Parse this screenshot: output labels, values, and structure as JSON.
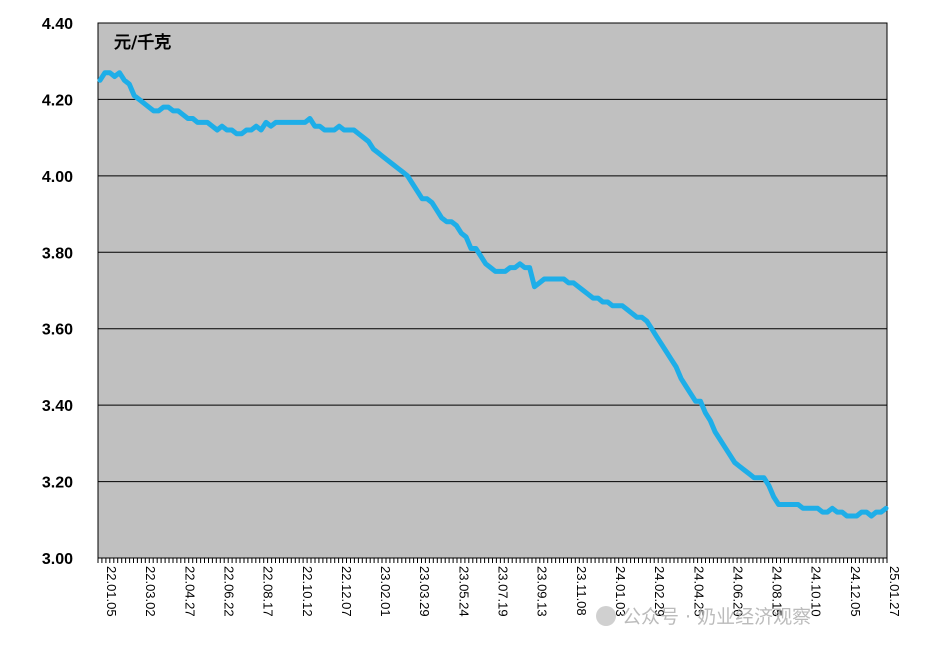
{
  "chart_data": {
    "type": "line",
    "unit_label": "元/千克",
    "ylim": [
      3.0,
      4.4
    ],
    "yticks": [
      "4.40",
      "4.20",
      "4.00",
      "3.80",
      "3.60",
      "3.40",
      "3.20",
      "3.00"
    ],
    "ytick_values": [
      4.4,
      4.2,
      4.0,
      3.8,
      3.6,
      3.4,
      3.2,
      3.0
    ],
    "grid": true,
    "legend": "none",
    "colors": {
      "plot_bg": "#c0c0c0",
      "line": "#1eaee8",
      "grid": "#000000"
    },
    "x_tick_labels": [
      "22.01.05",
      "22.03.02",
      "22.04.27",
      "22.06.22",
      "22.08.17",
      "22.10.12",
      "22.12.07",
      "23.02.01",
      "23.03.29",
      "23.05.24",
      "23.07.19",
      "23.09.13",
      "23.11.08",
      "24.01.03",
      "24.02.29",
      "24.04.25",
      "24.06.20",
      "24.08.15",
      "24.10.10",
      "24.12.05",
      "25.01.27"
    ],
    "series": [
      {
        "values": [
          4.25,
          4.27,
          4.27,
          4.26,
          4.27,
          4.25,
          4.24,
          4.21,
          4.2,
          4.19,
          4.18,
          4.17,
          4.17,
          4.18,
          4.18,
          4.17,
          4.17,
          4.16,
          4.15,
          4.15,
          4.14,
          4.14,
          4.14,
          4.13,
          4.12,
          4.13,
          4.12,
          4.12,
          4.11,
          4.11,
          4.12,
          4.12,
          4.13,
          4.12,
          4.14,
          4.13,
          4.14,
          4.14,
          4.14,
          4.14,
          4.14,
          4.14,
          4.14,
          4.15,
          4.13,
          4.13,
          4.12,
          4.12,
          4.12,
          4.13,
          4.12,
          4.12,
          4.12,
          4.11,
          4.1,
          4.09,
          4.07,
          4.06,
          4.05,
          4.04,
          4.03,
          4.02,
          4.01,
          4.0,
          3.98,
          3.96,
          3.94,
          3.94,
          3.93,
          3.91,
          3.89,
          3.88,
          3.88,
          3.87,
          3.85,
          3.84,
          3.81,
          3.81,
          3.79,
          3.77,
          3.76,
          3.75,
          3.75,
          3.75,
          3.76,
          3.76,
          3.77,
          3.76,
          3.76,
          3.71,
          3.72,
          3.73,
          3.73,
          3.73,
          3.73,
          3.73,
          3.72,
          3.72,
          3.71,
          3.7,
          3.69,
          3.68,
          3.68,
          3.67,
          3.67,
          3.66,
          3.66,
          3.66,
          3.65,
          3.64,
          3.63,
          3.63,
          3.62,
          3.6,
          3.58,
          3.56,
          3.54,
          3.52,
          3.5,
          3.47,
          3.45,
          3.43,
          3.41,
          3.41,
          3.38,
          3.36,
          3.33,
          3.31,
          3.29,
          3.27,
          3.25,
          3.24,
          3.23,
          3.22,
          3.21,
          3.21,
          3.21,
          3.19,
          3.16,
          3.14,
          3.14,
          3.14,
          3.14,
          3.14,
          3.13,
          3.13,
          3.13,
          3.13,
          3.12,
          3.12,
          3.13,
          3.12,
          3.12,
          3.11,
          3.11,
          3.11,
          3.12,
          3.12,
          3.11,
          3.12,
          3.12,
          3.13
        ]
      }
    ]
  },
  "watermark": "公众号 · 奶业经济观察"
}
